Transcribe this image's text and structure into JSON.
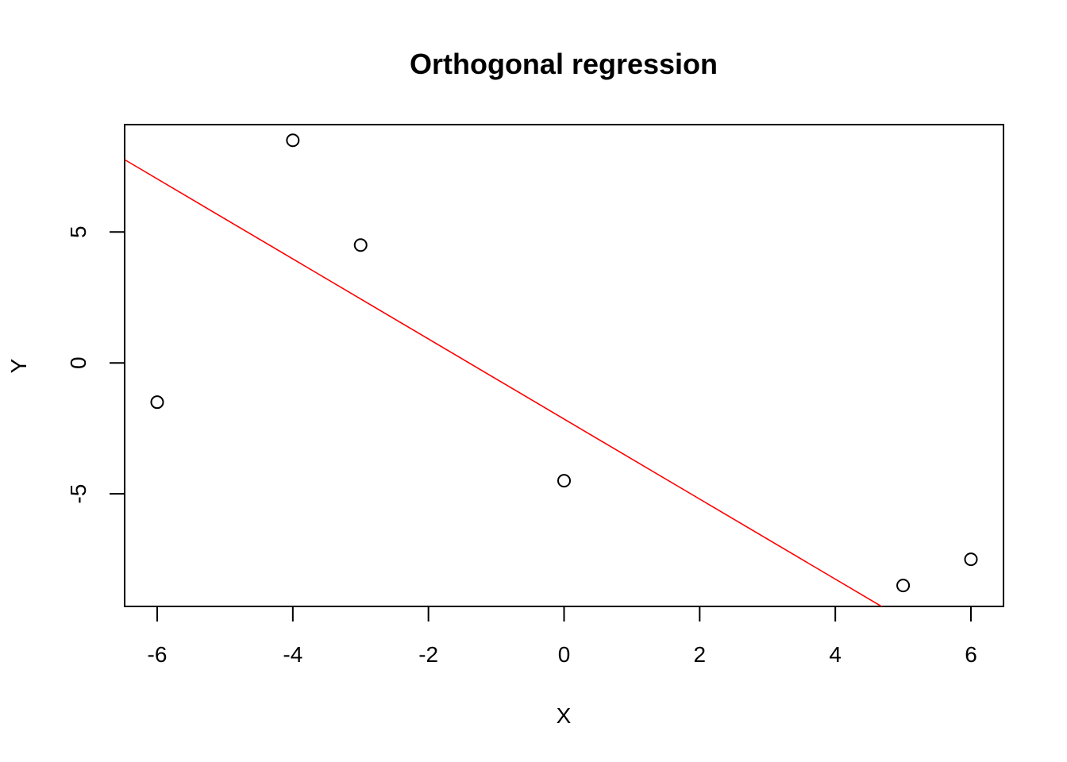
{
  "chart_data": {
    "type": "scatter",
    "title": "Orthogonal regression",
    "xlabel": "X",
    "ylabel": "Y",
    "xlim": [
      -6.48,
      6.48
    ],
    "ylim": [
      -9.3,
      9.1
    ],
    "x_ticks": [
      -6,
      -4,
      -2,
      0,
      2,
      4,
      6
    ],
    "x_tick_labels": [
      "-6",
      "-4",
      "-2",
      "0",
      "2",
      "4",
      "6"
    ],
    "y_ticks": [
      -5,
      0,
      5
    ],
    "y_tick_labels": [
      "-5",
      "0",
      "5"
    ],
    "grid": false,
    "series": [
      {
        "type": "scatter",
        "marker": "open-circle",
        "color": "#000000",
        "points": [
          {
            "x": -6,
            "y": -1.5
          },
          {
            "x": -4,
            "y": 8.5
          },
          {
            "x": -3,
            "y": 4.5
          },
          {
            "x": 0,
            "y": -4.5
          },
          {
            "x": 5,
            "y": -8.5
          },
          {
            "x": 6,
            "y": -7.5
          }
        ]
      },
      {
        "type": "line",
        "color": "#ff0000",
        "intercept": -2.143,
        "slope": -1.5286
      }
    ]
  }
}
